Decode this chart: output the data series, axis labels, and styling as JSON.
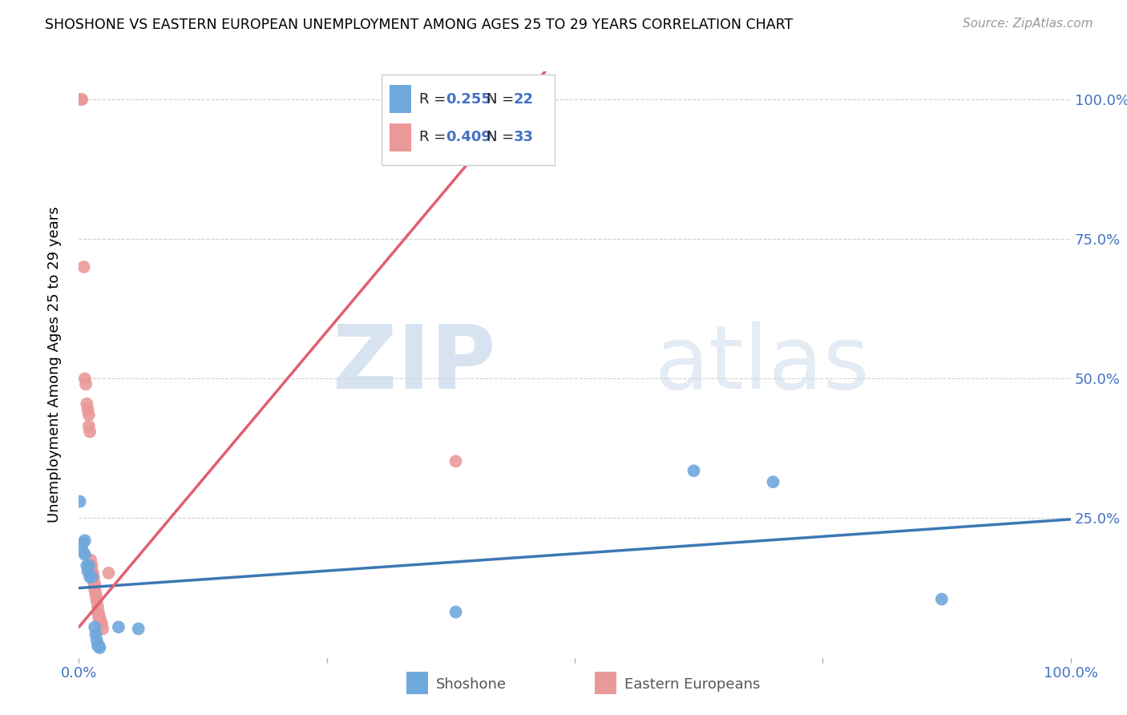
{
  "title": "SHOSHONE VS EASTERN EUROPEAN UNEMPLOYMENT AMONG AGES 25 TO 29 YEARS CORRELATION CHART",
  "source": "Source: ZipAtlas.com",
  "ylabel": "Unemployment Among Ages 25 to 29 years",
  "ytick_labels": [
    "100.0%",
    "75.0%",
    "50.0%",
    "25.0%"
  ],
  "ytick_values": [
    1.0,
    0.75,
    0.5,
    0.25
  ],
  "right_ytick_labels": [
    "100.0%",
    "75.0%",
    "50.0%",
    "25.0%"
  ],
  "watermark_zip": "ZIP",
  "watermark_atlas": "atlas",
  "legend_r1": "0.255",
  "legend_n1": "22",
  "legend_r2": "0.409",
  "legend_n2": "33",
  "shoshone_color": "#6fa8dc",
  "eastern_color": "#ea9999",
  "shoshone_line_color": "#3c78b4",
  "eastern_line_color": "#e06070",
  "shoshone_scatter": [
    [
      0.001,
      0.28
    ],
    [
      0.004,
      0.205
    ],
    [
      0.004,
      0.19
    ],
    [
      0.006,
      0.21
    ],
    [
      0.006,
      0.185
    ],
    [
      0.008,
      0.165
    ],
    [
      0.009,
      0.155
    ],
    [
      0.01,
      0.165
    ],
    [
      0.011,
      0.145
    ],
    [
      0.013,
      0.145
    ],
    [
      0.016,
      0.055
    ],
    [
      0.017,
      0.042
    ],
    [
      0.018,
      0.032
    ],
    [
      0.019,
      0.022
    ],
    [
      0.02,
      0.022
    ],
    [
      0.021,
      0.018
    ],
    [
      0.04,
      0.055
    ],
    [
      0.06,
      0.052
    ],
    [
      0.38,
      0.082
    ],
    [
      0.62,
      0.335
    ],
    [
      0.7,
      0.315
    ],
    [
      0.87,
      0.105
    ]
  ],
  "eastern_scatter": [
    [
      0.001,
      1.0
    ],
    [
      0.002,
      1.0
    ],
    [
      0.003,
      1.0
    ],
    [
      0.005,
      0.7
    ],
    [
      0.006,
      0.5
    ],
    [
      0.007,
      0.49
    ],
    [
      0.008,
      0.455
    ],
    [
      0.009,
      0.445
    ],
    [
      0.01,
      0.435
    ],
    [
      0.01,
      0.415
    ],
    [
      0.011,
      0.405
    ],
    [
      0.012,
      0.175
    ],
    [
      0.013,
      0.165
    ],
    [
      0.013,
      0.155
    ],
    [
      0.014,
      0.152
    ],
    [
      0.015,
      0.145
    ],
    [
      0.015,
      0.135
    ],
    [
      0.016,
      0.132
    ],
    [
      0.016,
      0.122
    ],
    [
      0.017,
      0.115
    ],
    [
      0.017,
      0.112
    ],
    [
      0.018,
      0.105
    ],
    [
      0.018,
      0.102
    ],
    [
      0.019,
      0.092
    ],
    [
      0.019,
      0.082
    ],
    [
      0.02,
      0.08
    ],
    [
      0.02,
      0.072
    ],
    [
      0.021,
      0.072
    ],
    [
      0.022,
      0.062
    ],
    [
      0.023,
      0.062
    ],
    [
      0.024,
      0.052
    ],
    [
      0.03,
      0.152
    ],
    [
      0.38,
      0.352
    ]
  ],
  "xlim": [
    0,
    1.0
  ],
  "ylim": [
    0,
    1.05
  ],
  "blue_line": [
    [
      0.0,
      0.125
    ],
    [
      1.0,
      0.248
    ]
  ],
  "pink_line": [
    [
      0.0,
      0.055
    ],
    [
      0.47,
      1.05
    ]
  ]
}
